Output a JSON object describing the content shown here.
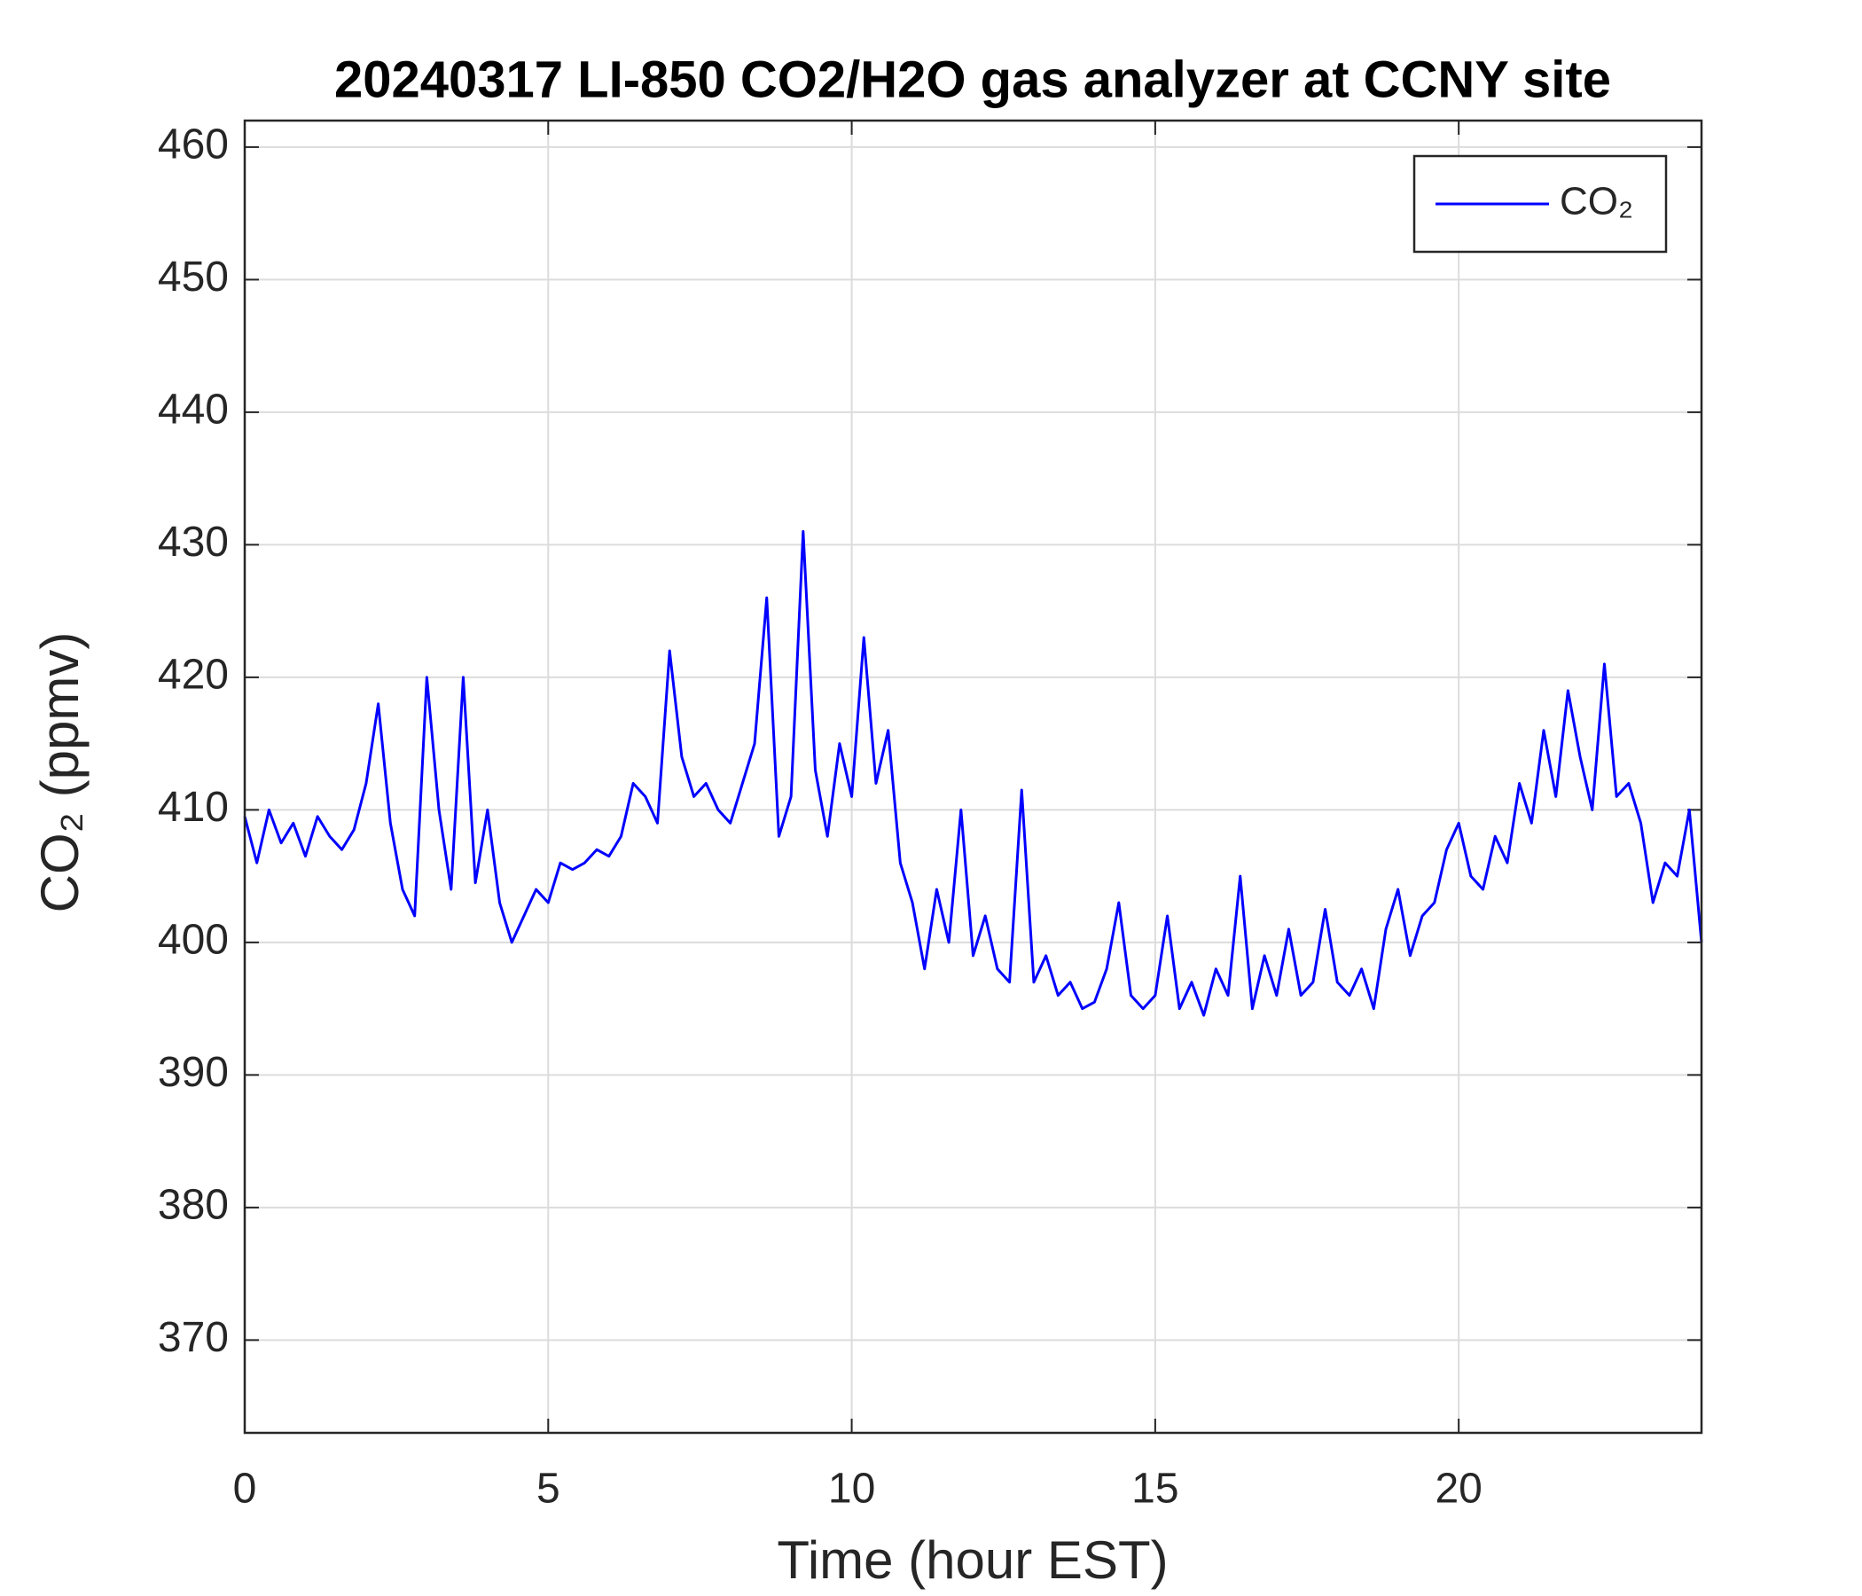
{
  "chart_data": {
    "type": "line",
    "title": "20240317 LI-850 CO2/H2O gas analyzer at CCNY site",
    "x_label": "Time (hour EST)",
    "y_label": "CO₂ (ppmv)",
    "x": [
      0,
      0.2,
      0.4,
      0.6,
      0.8,
      1,
      1.2,
      1.4,
      1.6,
      1.8,
      2,
      2.2,
      2.4,
      2.6,
      2.8,
      3,
      3.2,
      3.4,
      3.6,
      3.8,
      4,
      4.2,
      4.4,
      4.6,
      4.8,
      5,
      5.2,
      5.4,
      5.6,
      5.8,
      6,
      6.2,
      6.4,
      6.6,
      6.8,
      7,
      7.2,
      7.4,
      7.6,
      7.8,
      8,
      8.2,
      8.4,
      8.6,
      8.8,
      9,
      9.2,
      9.4,
      9.6,
      9.8,
      10,
      10.2,
      10.4,
      10.6,
      10.8,
      11,
      11.2,
      11.4,
      11.6,
      11.8,
      12,
      12.2,
      12.4,
      12.6,
      12.8,
      13,
      13.2,
      13.4,
      13.6,
      13.8,
      14,
      14.2,
      14.4,
      14.6,
      14.8,
      15,
      15.2,
      15.4,
      15.6,
      15.8,
      16,
      16.2,
      16.4,
      16.6,
      16.8,
      17,
      17.2,
      17.4,
      17.6,
      17.8,
      18,
      18.2,
      18.4,
      18.6,
      18.8,
      19,
      19.2,
      19.4,
      19.6,
      19.8,
      20,
      20.2,
      20.4,
      20.6,
      20.8,
      21,
      21.2,
      21.4,
      21.6,
      21.8,
      22,
      22.2,
      22.4,
      22.6,
      22.8,
      23,
      23.2,
      23.4,
      23.6,
      23.8,
      24
    ],
    "series": [
      {
        "name": "CO₂",
        "color": "#0000ff",
        "values": [
          409.5,
          406,
          410,
          407.5,
          409,
          406.5,
          409.5,
          408,
          407,
          408.5,
          412,
          418,
          409,
          404,
          402,
          420,
          410,
          404,
          420,
          404.5,
          410,
          403,
          400,
          402,
          404,
          403,
          406,
          405.5,
          406,
          407,
          406.5,
          408,
          412,
          411,
          409,
          422,
          414,
          411,
          412,
          410,
          409,
          412,
          415,
          426,
          408,
          411,
          431,
          413,
          408,
          415,
          411,
          423,
          412,
          416,
          406,
          403,
          398,
          404,
          400,
          410,
          399,
          402,
          398,
          397,
          411.5,
          397,
          399,
          396,
          397,
          395,
          395.5,
          398,
          403,
          396,
          395,
          396,
          402,
          395,
          397,
          394.5,
          398,
          396,
          405,
          395,
          399,
          396,
          401,
          396,
          397,
          402.5,
          397,
          396,
          398,
          395,
          401,
          404,
          399,
          402,
          403,
          407,
          409,
          405,
          404,
          408,
          406,
          412,
          409,
          416,
          411,
          419,
          414,
          410,
          421,
          411,
          412,
          409,
          403,
          406,
          405,
          410,
          400
        ]
      }
    ],
    "xlim": [
      0,
      24
    ],
    "ylim": [
      363,
      462
    ],
    "xticks": [
      0,
      5,
      10,
      15,
      20
    ],
    "yticks": [
      370,
      380,
      390,
      400,
      410,
      420,
      430,
      440,
      450,
      460
    ],
    "grid": true,
    "legend": "northeast"
  }
}
